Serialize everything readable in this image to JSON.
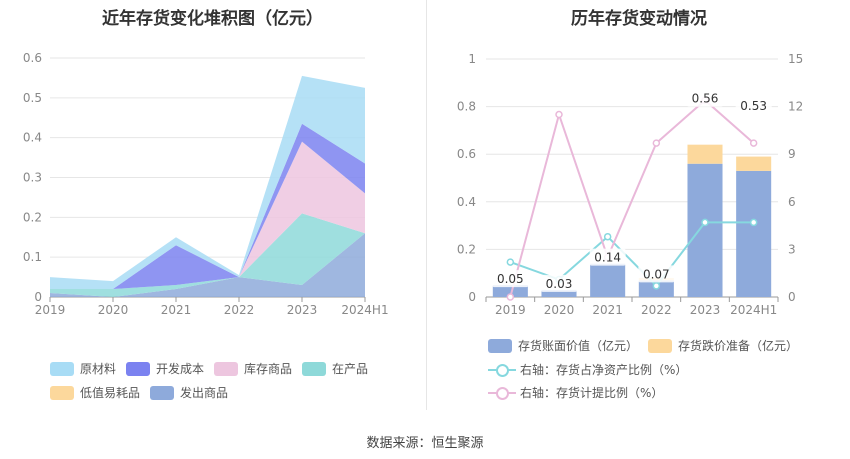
{
  "footer": {
    "source": "数据来源：恒生聚源"
  },
  "chart_data": [
    {
      "type": "area",
      "title": "近年存货变化堆积图（亿元）",
      "categories": [
        "2019",
        "2020",
        "2021",
        "2022",
        "2023",
        "2024H1"
      ],
      "ylim": [
        0,
        0.6
      ],
      "yticks": [
        "0",
        "0.1",
        "0.2",
        "0.3",
        "0.4",
        "0.5",
        "0.6"
      ],
      "grid": true,
      "legend_position": "bottom",
      "series": [
        {
          "name": "原材料",
          "color": "#a8dcf5",
          "values": [
            0.03,
            0.02,
            0.02,
            0.005,
            0.12,
            0.19
          ]
        },
        {
          "name": "开发成本",
          "color": "#7b82f0",
          "values": [
            0.0,
            0.0,
            0.1,
            0.0,
            0.045,
            0.075
          ]
        },
        {
          "name": "库存商品",
          "color": "#edc6df",
          "values": [
            0.0,
            0.0,
            0.0,
            0.0,
            0.18,
            0.1
          ]
        },
        {
          "name": "在产品",
          "color": "#8ed9d9",
          "values": [
            0.01,
            0.02,
            0.01,
            0.0,
            0.18,
            0.0
          ]
        },
        {
          "name": "低值易耗品",
          "color": "#fcd89c",
          "values": [
            0.0,
            0.0,
            0.0,
            0.0,
            0.0,
            0.0
          ]
        },
        {
          "name": "发出商品",
          "color": "#8eaadb",
          "values": [
            0.01,
            0.0,
            0.02,
            0.05,
            0.03,
            0.16
          ]
        }
      ]
    },
    {
      "type": "bar",
      "title": "历年存货变动情况",
      "categories": [
        "2019",
        "2020",
        "2021",
        "2022",
        "2023",
        "2024H1"
      ],
      "ylim": [
        0,
        1
      ],
      "yticks": [
        "0",
        "0.2",
        "0.4",
        "0.6",
        "0.8",
        "1"
      ],
      "y2lim": [
        0,
        15
      ],
      "y2ticks": [
        "0",
        "3",
        "6",
        "9",
        "12",
        "15"
      ],
      "grid": true,
      "legend_position": "bottom",
      "bars": [
        {
          "name": "存货账面价值（亿元）",
          "color": "#8eaadb",
          "values": [
            0.05,
            0.03,
            0.14,
            0.07,
            0.56,
            0.53
          ],
          "labels": [
            "0.05",
            "0.03",
            "0.14",
            "0.07",
            "0.56",
            "0.53"
          ]
        },
        {
          "name": "存货跌价准备（亿元）",
          "color": "#fcd89c",
          "values": [
            0.0,
            0.0,
            0.0,
            0.01,
            0.08,
            0.06
          ]
        }
      ],
      "lines": [
        {
          "name": "右轴：存货占净资产比例（%）",
          "color": "#86d8df",
          "axis": "right",
          "values": [
            2.2,
            1.1,
            3.8,
            0.7,
            4.7,
            4.7
          ]
        },
        {
          "name": "右轴：存货计提比例（%）",
          "color": "#e9b8d9",
          "axis": "right",
          "values": [
            0.0,
            11.5,
            2.5,
            9.7,
            12.4,
            9.7
          ]
        }
      ]
    }
  ]
}
